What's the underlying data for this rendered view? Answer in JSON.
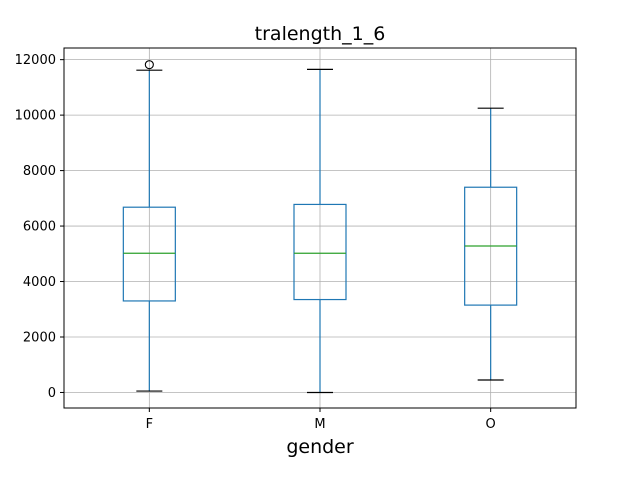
{
  "chart_data": {
    "type": "box",
    "title": "tralength_1_6",
    "xlabel": "gender",
    "ylabel": "",
    "ylim": [
      -560,
      12420
    ],
    "yticks": [
      0,
      2000,
      4000,
      6000,
      8000,
      10000,
      12000
    ],
    "grid": true,
    "categories": [
      "F",
      "M",
      "O"
    ],
    "boxes": [
      {
        "category": "F",
        "whisker_low": 50,
        "q1": 3300,
        "median": 5020,
        "q3": 6680,
        "whisker_high": 11620,
        "outliers": [
          11820
        ]
      },
      {
        "category": "M",
        "whisker_low": 0,
        "q1": 3350,
        "median": 5020,
        "q3": 6780,
        "whisker_high": 11650,
        "outliers": []
      },
      {
        "category": "O",
        "whisker_low": 450,
        "q1": 3150,
        "median": 5280,
        "q3": 7400,
        "whisker_high": 10250,
        "outliers": []
      }
    ],
    "colors": {
      "box": "#1f77b4",
      "median": "#2ca02c",
      "grid": "#b0b0b0",
      "outlier": "#000000"
    }
  }
}
